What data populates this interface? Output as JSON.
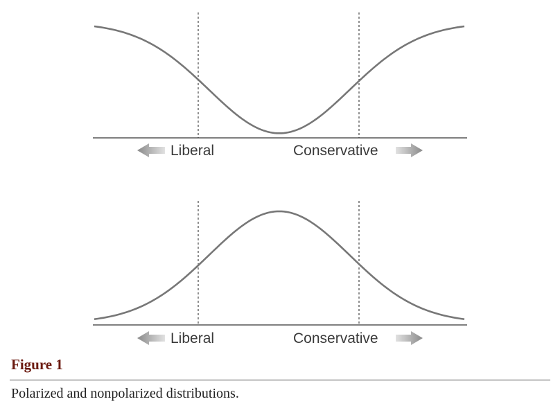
{
  "figure": {
    "label": "Figure 1",
    "caption": "Polarized and nonpolarized distributions."
  },
  "chart_data": [
    {
      "type": "line",
      "panel": "top",
      "shape": "polarized (U-shaped) distribution",
      "x_range": [
        0,
        1
      ],
      "cutoffs": [
        0.285,
        0.715
      ],
      "curve": {
        "min_at": 0.5,
        "min_level": 0.04,
        "tail_level": 1.0,
        "width": 0.19,
        "color": "#777777"
      },
      "axis_labels": {
        "left": "Liberal",
        "right": "Conservative"
      },
      "grid": false
    },
    {
      "type": "line",
      "panel": "bottom",
      "shape": "nonpolarized (bell-shaped) distribution",
      "x_range": [
        0,
        1
      ],
      "cutoffs": [
        0.285,
        0.715
      ],
      "curve": {
        "peak_at": 0.5,
        "peak_level": 1.0,
        "tail_level": 0.02,
        "width": 0.19,
        "color": "#777777"
      },
      "axis_labels": {
        "left": "Liberal",
        "right": "Conservative"
      },
      "grid": false
    }
  ]
}
